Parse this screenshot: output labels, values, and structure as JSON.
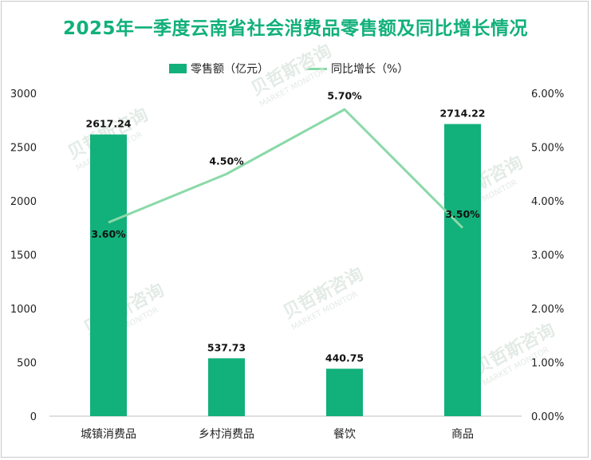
{
  "chart_data": {
    "type": "bar+line",
    "title": "2025年一季度云南省社会消费品零售额及同比增长情况",
    "categories": [
      "城镇消费品",
      "乡村消费品",
      "餐饮",
      "商品"
    ],
    "series": [
      {
        "name": "零售额（亿元）",
        "type": "bar",
        "axis": "left",
        "values": [
          2617.24,
          537.73,
          440.75,
          2714.22
        ],
        "labels": [
          "2617.24",
          "537.73",
          "440.75",
          "2714.22"
        ]
      },
      {
        "name": "同比增长（%）",
        "type": "line",
        "axis": "right",
        "values": [
          3.6,
          4.5,
          5.7,
          3.5
        ],
        "labels": [
          "3.60%",
          "4.50%",
          "5.70%",
          "3.50%"
        ]
      }
    ],
    "left_axis": {
      "ylim": [
        0,
        3000
      ],
      "ticks": [
        "0",
        "500",
        "1000",
        "1500",
        "2000",
        "2500",
        "3000"
      ]
    },
    "right_axis": {
      "ylim": [
        0,
        6
      ],
      "ticks": [
        "0.00%",
        "1.00%",
        "2.00%",
        "3.00%",
        "4.00%",
        "5.00%",
        "6.00%"
      ]
    },
    "legend_position": "top-center",
    "grid": false
  },
  "colors": {
    "bar": "#12b07a",
    "line": "#8ad9a8",
    "title": "#12b07a"
  },
  "watermark": {
    "text": "贝哲斯咨询",
    "sub": "MARKET MONITOR"
  }
}
